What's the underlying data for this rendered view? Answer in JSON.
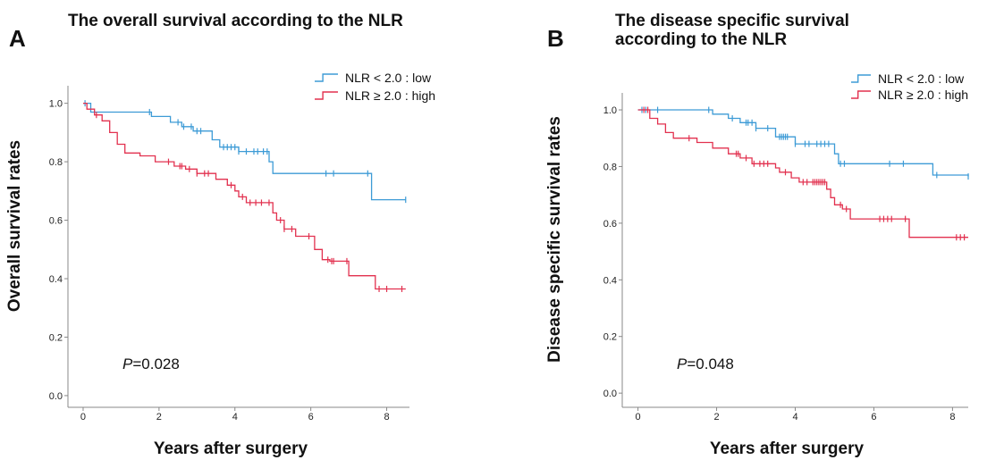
{
  "colors": {
    "low": "#3d9bd6",
    "high": "#e2314f",
    "axis": "#888888"
  },
  "chart_data": [
    {
      "panel": "A",
      "title": "The overall survival according to the NLR",
      "type": "line",
      "step": true,
      "xlabel": "Years after surgery",
      "ylabel": "Overall survival rates",
      "xlim": [
        -0.4,
        8.6
      ],
      "ylim": [
        -0.04,
        1.06
      ],
      "xticks": [
        0,
        2,
        4,
        6,
        8
      ],
      "yticks": [
        0.0,
        0.2,
        0.4,
        0.6,
        0.8,
        1.0
      ],
      "ytick_labels": [
        "0.0",
        "0.2",
        "0.4",
        "0.6",
        "0.8",
        "1.0"
      ],
      "legend_position": "top-right",
      "p_label": "P",
      "p_value": "0.028",
      "series": [
        {
          "key": "low",
          "name": "NLR < 2.0 : low",
          "steps": [
            [
              0,
              1.0
            ],
            [
              0.2,
              0.97
            ],
            [
              1.8,
              0.955
            ],
            [
              2.3,
              0.935
            ],
            [
              2.6,
              0.92
            ],
            [
              2.9,
              0.905
            ],
            [
              3.4,
              0.875
            ],
            [
              3.6,
              0.85
            ],
            [
              4.1,
              0.835
            ],
            [
              4.9,
              0.8
            ],
            [
              5.0,
              0.76
            ],
            [
              7.6,
              0.67
            ],
            [
              8.5,
              0.67
            ]
          ],
          "censor": [
            0.05,
            1.75,
            2.5,
            2.65,
            2.85,
            3.0,
            3.1,
            3.7,
            3.8,
            3.9,
            4.0,
            4.1,
            4.3,
            4.5,
            4.6,
            4.75,
            4.85,
            6.4,
            6.6,
            7.5,
            8.5
          ]
        },
        {
          "key": "high",
          "name": "NLR ≥ 2.0 : high",
          "steps": [
            [
              0,
              1.0
            ],
            [
              0.1,
              0.98
            ],
            [
              0.3,
              0.96
            ],
            [
              0.5,
              0.94
            ],
            [
              0.7,
              0.9
            ],
            [
              0.9,
              0.86
            ],
            [
              1.1,
              0.83
            ],
            [
              1.5,
              0.82
            ],
            [
              1.9,
              0.8
            ],
            [
              2.4,
              0.785
            ],
            [
              2.7,
              0.775
            ],
            [
              3.0,
              0.76
            ],
            [
              3.5,
              0.74
            ],
            [
              3.8,
              0.72
            ],
            [
              4.0,
              0.7
            ],
            [
              4.1,
              0.68
            ],
            [
              4.3,
              0.66
            ],
            [
              5.0,
              0.625
            ],
            [
              5.1,
              0.6
            ],
            [
              5.3,
              0.57
            ],
            [
              5.6,
              0.545
            ],
            [
              6.1,
              0.5
            ],
            [
              6.3,
              0.465
            ],
            [
              6.5,
              0.46
            ],
            [
              7.0,
              0.41
            ],
            [
              7.7,
              0.365
            ],
            [
              8.5,
              0.365
            ]
          ],
          "censor": [
            0.35,
            2.25,
            2.55,
            2.6,
            2.8,
            3.0,
            3.2,
            3.3,
            3.9,
            4.2,
            4.4,
            4.55,
            4.7,
            4.9,
            5.2,
            5.3,
            5.5,
            5.95,
            6.45,
            6.55,
            6.6,
            6.95,
            7.8,
            8.0,
            8.4
          ]
        }
      ]
    },
    {
      "panel": "B",
      "title": "The disease specific survival according to the NLR",
      "type": "line",
      "step": true,
      "xlabel": "Years after surgery",
      "ylabel": "Disease specific survival rates",
      "xlim": [
        -0.4,
        8.4
      ],
      "ylim": [
        -0.05,
        1.06
      ],
      "xticks": [
        0,
        2,
        4,
        6,
        8
      ],
      "yticks": [
        0.0,
        0.2,
        0.4,
        0.6,
        0.8,
        1.0
      ],
      "ytick_labels": [
        "0.0",
        "0.2",
        "0.4",
        "0.6",
        "0.8",
        "1.0"
      ],
      "legend_position": "top-right",
      "p_label": "P",
      "p_value": "0.048",
      "series": [
        {
          "key": "low",
          "name": "NLR < 2.0 : low",
          "steps": [
            [
              0,
              1.0
            ],
            [
              1.9,
              0.985
            ],
            [
              2.3,
              0.97
            ],
            [
              2.6,
              0.955
            ],
            [
              3.0,
              0.935
            ],
            [
              3.5,
              0.905
            ],
            [
              4.0,
              0.88
            ],
            [
              5.0,
              0.845
            ],
            [
              5.1,
              0.81
            ],
            [
              7.5,
              0.77
            ],
            [
              8.4,
              0.765
            ]
          ],
          "censor": [
            0.1,
            0.2,
            0.5,
            1.8,
            2.4,
            2.75,
            2.8,
            2.9,
            3.0,
            3.3,
            3.6,
            3.65,
            3.7,
            3.75,
            3.8,
            4.0,
            4.25,
            4.35,
            4.55,
            4.65,
            4.75,
            4.85,
            5.15,
            5.25,
            6.4,
            6.75,
            7.6,
            8.4
          ]
        },
        {
          "key": "high",
          "name": "NLR ≥ 2.0 : high",
          "steps": [
            [
              0,
              1.0
            ],
            [
              0.3,
              0.97
            ],
            [
              0.5,
              0.95
            ],
            [
              0.7,
              0.92
            ],
            [
              0.9,
              0.9
            ],
            [
              1.5,
              0.885
            ],
            [
              1.9,
              0.865
            ],
            [
              2.3,
              0.845
            ],
            [
              2.6,
              0.83
            ],
            [
              2.9,
              0.81
            ],
            [
              3.5,
              0.795
            ],
            [
              3.6,
              0.78
            ],
            [
              3.9,
              0.76
            ],
            [
              4.1,
              0.745
            ],
            [
              4.8,
              0.72
            ],
            [
              4.9,
              0.69
            ],
            [
              5.0,
              0.665
            ],
            [
              5.2,
              0.65
            ],
            [
              5.4,
              0.615
            ],
            [
              6.9,
              0.55
            ],
            [
              8.4,
              0.55
            ]
          ],
          "censor": [
            0.15,
            0.25,
            1.3,
            2.5,
            2.55,
            2.75,
            2.95,
            3.1,
            3.2,
            3.3,
            3.75,
            4.2,
            4.3,
            4.45,
            4.5,
            4.55,
            4.6,
            4.65,
            4.7,
            4.75,
            5.15,
            5.3,
            6.15,
            6.25,
            6.35,
            6.45,
            6.8,
            8.1,
            8.2,
            8.3
          ]
        }
      ]
    }
  ]
}
